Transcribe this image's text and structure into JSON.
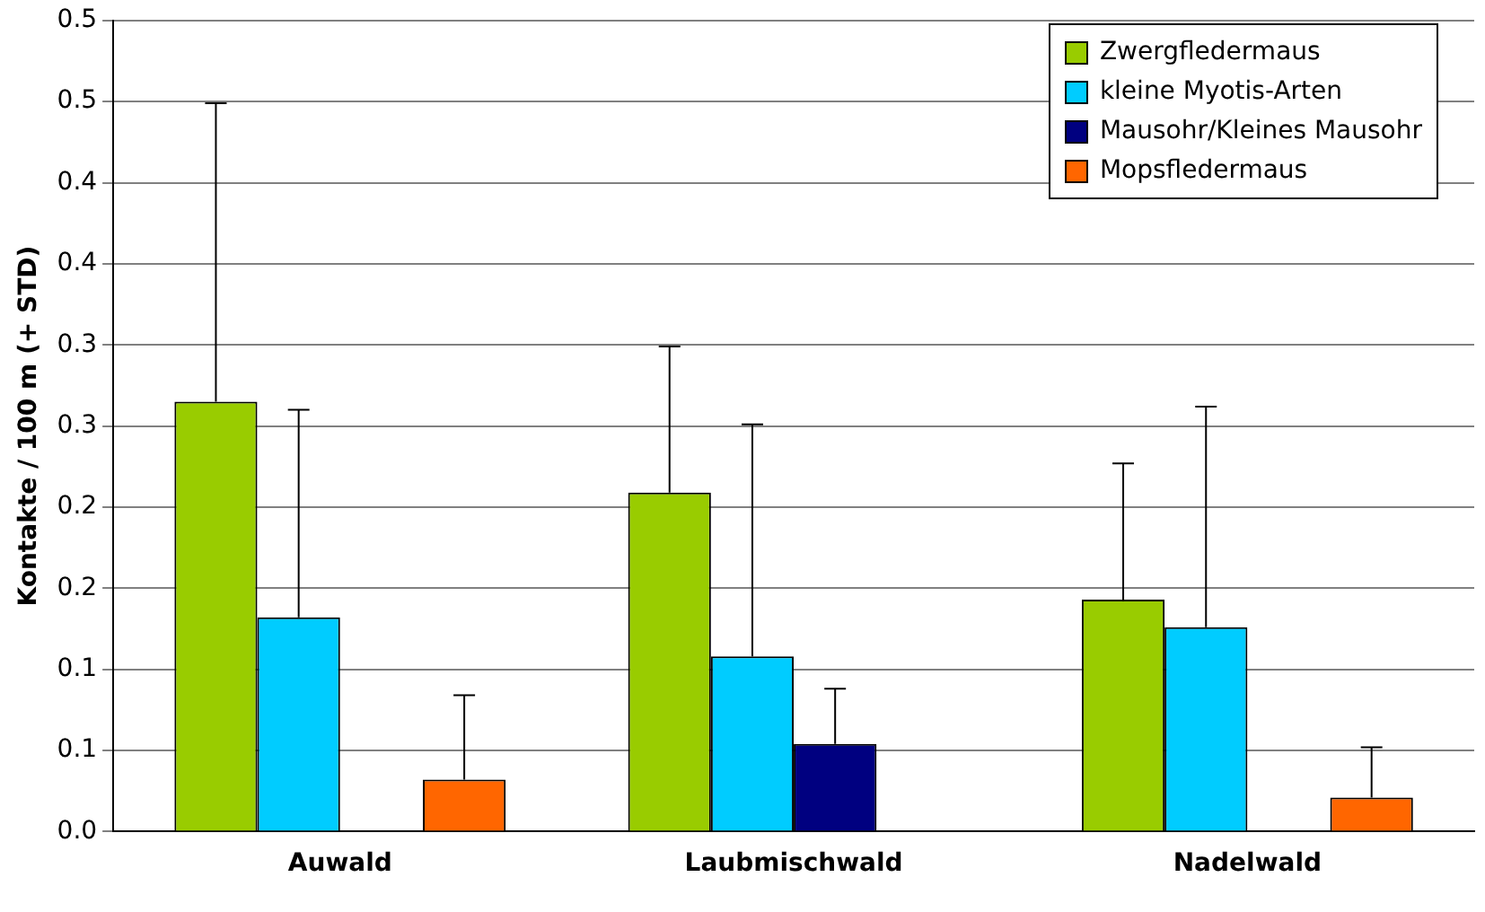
{
  "chart_data": {
    "type": "bar",
    "ylabel": "Kontakte / 100 m (+ STD)",
    "categories": [
      "Auwald",
      "Laubmischwald",
      "Nadelwald"
    ],
    "series": [
      {
        "name": "Zwergfledermaus",
        "color": "#99cc00",
        "values": [
          0.265,
          0.209,
          0.143
        ],
        "errors": [
          [
            0.265,
            0.449
          ],
          [
            0.209,
            0.299
          ],
          [
            0.143,
            0.227
          ]
        ]
      },
      {
        "name": "kleine Myotis-Arten",
        "color": "#00ccff",
        "values": [
          0.132,
          0.108,
          0.126
        ],
        "errors": [
          [
            0.132,
            0.26
          ],
          [
            0.108,
            0.251
          ],
          [
            0.126,
            0.262
          ]
        ]
      },
      {
        "name": "Mausohr/Kleines Mausohr",
        "color": "#000080",
        "values": [
          0,
          0.054,
          0
        ],
        "errors": [
          null,
          [
            0.054,
            0.088
          ],
          null
        ]
      },
      {
        "name": "Mopsfledermaus",
        "color": "#ff6600",
        "values": [
          0.032,
          0,
          0.021
        ],
        "errors": [
          [
            0.032,
            0.084
          ],
          null,
          [
            0.021,
            0.052
          ]
        ]
      }
    ],
    "ylim": [
      0,
      0.5
    ],
    "yticks": [
      {
        "value": 0,
        "label": "0.0"
      },
      {
        "value": 0.05,
        "label": "0.1"
      },
      {
        "value": 0.1,
        "label": "0.1"
      },
      {
        "value": 0.15,
        "label": "0.2"
      },
      {
        "value": 0.2,
        "label": "0.2"
      },
      {
        "value": 0.25,
        "label": "0.3"
      },
      {
        "value": 0.3,
        "label": "0.3"
      },
      {
        "value": 0.35,
        "label": "0.4"
      },
      {
        "value": 0.4,
        "label": "0.4"
      },
      {
        "value": 0.45,
        "label": "0.5"
      },
      {
        "value": 0.5,
        "label": "0.5"
      }
    ],
    "grid": "y",
    "legend": "top right"
  }
}
